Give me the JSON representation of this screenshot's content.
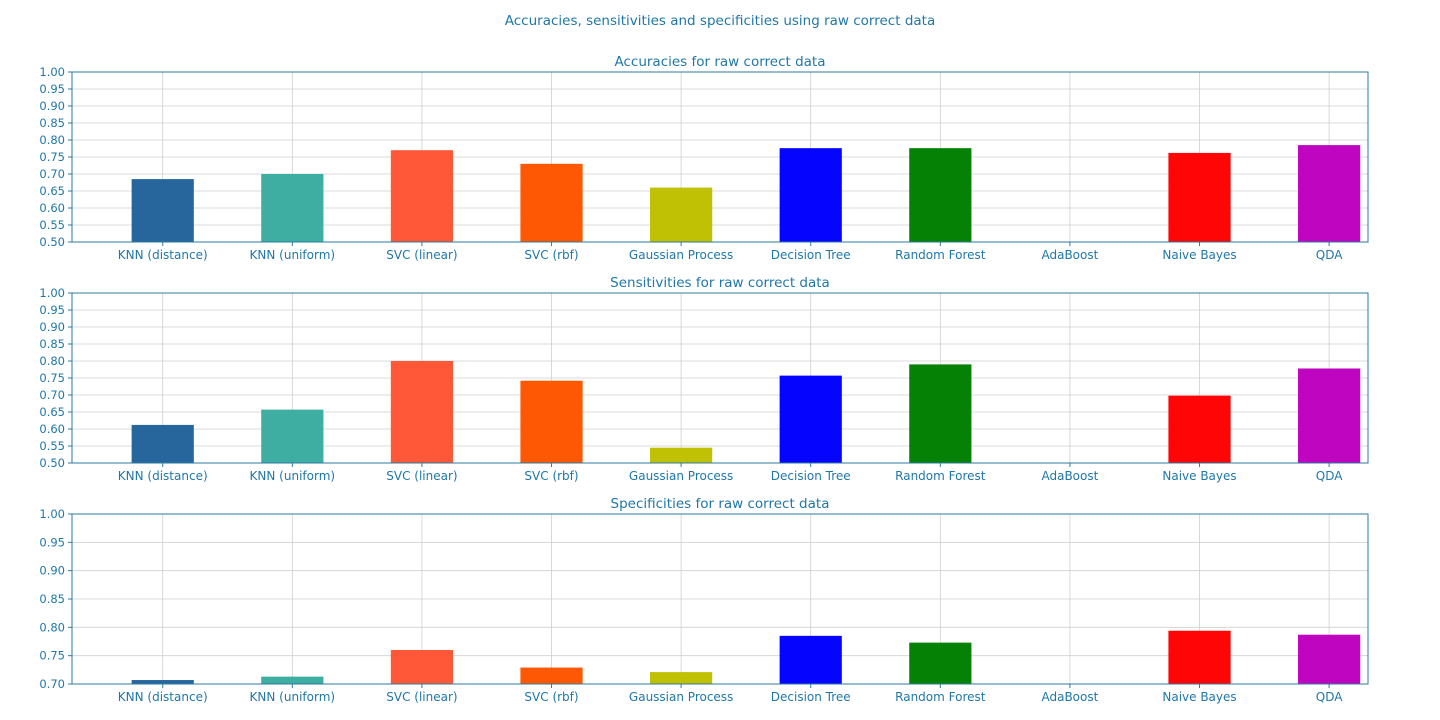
{
  "figure": {
    "title": "Accuracies, sensitivities and specificities using raw correct data"
  },
  "colors": {
    "text": "#1f77a8",
    "frame": "#2b7b9f",
    "grid": "#cfcfcf"
  },
  "chart_data": [
    {
      "type": "bar",
      "title": "Accuracies for raw correct data",
      "xlabel": "",
      "ylabel": "",
      "categories": [
        "KNN (distance)",
        "KNN (uniform)",
        "SVC (linear)",
        "SVC (rbf)",
        "Gaussian Process",
        "Decision Tree",
        "Random Forest",
        "AdaBoost",
        "Naive Bayes",
        "QDA"
      ],
      "values": [
        0.685,
        0.7,
        0.77,
        0.73,
        0.66,
        0.776,
        0.776,
        0.5,
        0.762,
        0.785
      ],
      "colors": [
        "#22639b",
        "#3aaba0",
        "#ff5534",
        "#ff5500",
        "#bfbf00",
        "#0000ff",
        "#008000",
        "#ffffff",
        "#ff0000",
        "#bf00bf"
      ],
      "ylim": [
        0.5,
        1.0
      ],
      "yticks": [
        "0.50",
        "0.55",
        "0.60",
        "0.65",
        "0.70",
        "0.75",
        "0.80",
        "0.85",
        "0.90",
        "0.95",
        "1.00"
      ],
      "grid": true,
      "legend": "none"
    },
    {
      "type": "bar",
      "title": "Sensitivities for raw correct data",
      "xlabel": "",
      "ylabel": "",
      "categories": [
        "KNN (distance)",
        "KNN (uniform)",
        "SVC (linear)",
        "SVC (rbf)",
        "Gaussian Process",
        "Decision Tree",
        "Random Forest",
        "AdaBoost",
        "Naive Bayes",
        "QDA"
      ],
      "values": [
        0.612,
        0.657,
        0.8,
        0.742,
        0.545,
        0.757,
        0.79,
        0.5,
        0.698,
        0.778
      ],
      "colors": [
        "#22639b",
        "#3aaba0",
        "#ff5534",
        "#ff5500",
        "#bfbf00",
        "#0000ff",
        "#008000",
        "#ffffff",
        "#ff0000",
        "#bf00bf"
      ],
      "ylim": [
        0.5,
        1.0
      ],
      "yticks": [
        "0.50",
        "0.55",
        "0.60",
        "0.65",
        "0.70",
        "0.75",
        "0.80",
        "0.85",
        "0.90",
        "0.95",
        "1.00"
      ],
      "grid": true,
      "legend": "none"
    },
    {
      "type": "bar",
      "title": "Specificities for raw correct data",
      "xlabel": "",
      "ylabel": "",
      "categories": [
        "KNN (distance)",
        "KNN (uniform)",
        "SVC (linear)",
        "SVC (rbf)",
        "Gaussian Process",
        "Decision Tree",
        "Random Forest",
        "AdaBoost",
        "Naive Bayes",
        "QDA"
      ],
      "values": [
        0.707,
        0.713,
        0.76,
        0.729,
        0.721,
        0.785,
        0.773,
        0.7,
        0.794,
        0.787
      ],
      "colors": [
        "#22639b",
        "#3aaba0",
        "#ff5534",
        "#ff5500",
        "#bfbf00",
        "#0000ff",
        "#008000",
        "#ffffff",
        "#ff0000",
        "#bf00bf"
      ],
      "ylim": [
        0.7,
        1.0
      ],
      "yticks": [
        "0.70",
        "0.75",
        "0.80",
        "0.85",
        "0.90",
        "0.95",
        "1.00"
      ],
      "grid": true,
      "legend": "none"
    }
  ]
}
